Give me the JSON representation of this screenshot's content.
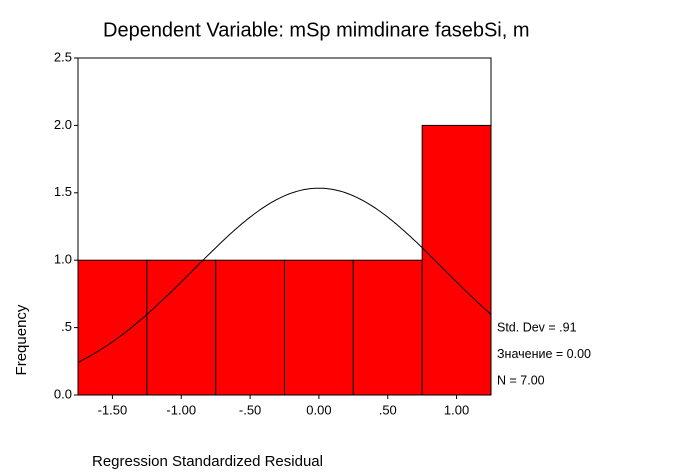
{
  "chart_data": {
    "type": "histogram",
    "title": "Dependent Variable: mSp mimdinare fasebSi, m",
    "x_label": "Regression Standardized Residual",
    "y_label": "Frequency",
    "bins": [
      -1.75,
      -1.25,
      -0.75,
      -0.25,
      0.25,
      0.75,
      1.25
    ],
    "values": [
      1,
      1,
      1,
      1,
      1,
      2
    ],
    "color": "#ff0000",
    "xlim": [
      -1.75,
      1.25
    ],
    "ylim": [
      0,
      2.5
    ],
    "xticks": [
      {
        "value": -1.5,
        "label": "-1.50"
      },
      {
        "value": -1,
        "label": "-1.00"
      },
      {
        "value": -0.5,
        "label": "-.50"
      },
      {
        "value": 0,
        "label": "0.00"
      },
      {
        "value": 0.5,
        "label": ".50"
      },
      {
        "value": 1,
        "label": "1.00"
      }
    ],
    "yticks": [
      {
        "value": 0,
        "label": "0.0"
      },
      {
        "value": 0.5,
        "label": ".5"
      },
      {
        "value": 1,
        "label": "1.0"
      },
      {
        "value": 1.5,
        "label": "1.5"
      },
      {
        "value": 2,
        "label": "2.0"
      },
      {
        "value": 2.5,
        "label": "2.5"
      }
    ],
    "stats": {
      "values": [
        0.91,
        0,
        7
      ],
      "value_labels": [
        "Std. Dev = .91",
        "Значение = 0.00",
        "N = 7.00"
      ]
    }
  }
}
